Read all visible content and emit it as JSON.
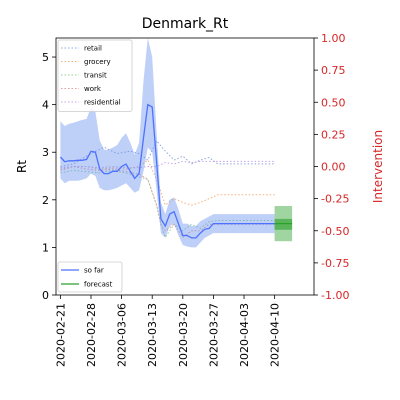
{
  "chart_data": {
    "type": "line",
    "title": "Denmark_Rt",
    "ylabel": "Rt",
    "ylabel_right": "Intervention",
    "ylim": [
      0,
      5.4
    ],
    "ylim_right": [
      -1.0,
      1.0
    ],
    "yticks": [
      0,
      1,
      2,
      3,
      4,
      5
    ],
    "yticks_right": [
      "-1.00",
      "-0.75",
      "-0.50",
      "-0.25",
      "0.00",
      "0.25",
      "0.50",
      "0.75",
      "1.00"
    ],
    "yticks_right_values": [
      -1.0,
      -0.75,
      -0.5,
      -0.25,
      0.0,
      0.25,
      0.5,
      0.75,
      1.0
    ],
    "x_dates": [
      "2020-02-21",
      "2020-02-28",
      "2020-03-06",
      "2020-03-13",
      "2020-03-20",
      "2020-03-27",
      "2020-04-03",
      "2020-04-10"
    ],
    "xlim": [
      "2020-02-20",
      "2020-04-19"
    ],
    "right_axis_color": "#d62728",
    "rt_so_far": {
      "name": "so far",
      "color": "#4c72ff",
      "dates": [
        "2020-02-21",
        "2020-02-22",
        "2020-02-23",
        "2020-02-24",
        "2020-02-25",
        "2020-02-26",
        "2020-02-27",
        "2020-02-28",
        "2020-02-29",
        "2020-03-01",
        "2020-03-02",
        "2020-03-03",
        "2020-03-04",
        "2020-03-05",
        "2020-03-06",
        "2020-03-07",
        "2020-03-08",
        "2020-03-09",
        "2020-03-10",
        "2020-03-11",
        "2020-03-12",
        "2020-03-13",
        "2020-03-14",
        "2020-03-15",
        "2020-03-16",
        "2020-03-17",
        "2020-03-18",
        "2020-03-19",
        "2020-03-20",
        "2020-03-21",
        "2020-03-22",
        "2020-03-23",
        "2020-03-24",
        "2020-03-25",
        "2020-03-26",
        "2020-03-27",
        "2020-04-03",
        "2020-04-10"
      ],
      "values": [
        2.9,
        2.8,
        2.82,
        2.82,
        2.83,
        2.83,
        2.85,
        3.02,
        3.0,
        2.65,
        2.55,
        2.55,
        2.6,
        2.6,
        2.7,
        2.75,
        2.6,
        2.45,
        2.55,
        3.3,
        4.0,
        3.95,
        2.8,
        1.6,
        1.45,
        1.7,
        1.75,
        1.5,
        1.25,
        1.25,
        1.2,
        1.2,
        1.3,
        1.38,
        1.4,
        1.5,
        1.5,
        1.5
      ],
      "lower": [
        2.45,
        2.35,
        2.4,
        2.4,
        2.4,
        2.42,
        2.45,
        2.55,
        2.5,
        2.25,
        2.2,
        2.2,
        2.22,
        2.25,
        2.3,
        2.35,
        2.25,
        2.15,
        2.2,
        2.6,
        3.1,
        3.0,
        2.2,
        1.3,
        1.2,
        1.45,
        1.5,
        1.25,
        1.05,
        1.02,
        1.0,
        1.0,
        1.1,
        1.2,
        1.25,
        1.3,
        1.3,
        1.3
      ],
      "upper": [
        3.65,
        3.55,
        3.6,
        3.62,
        3.65,
        3.68,
        3.7,
        3.95,
        3.85,
        3.25,
        3.05,
        3.05,
        3.1,
        3.15,
        3.3,
        3.4,
        3.2,
        2.95,
        3.2,
        4.5,
        5.5,
        5.0,
        3.4,
        1.95,
        1.7,
        2.0,
        2.05,
        1.8,
        1.5,
        1.5,
        1.45,
        1.45,
        1.55,
        1.6,
        1.65,
        1.7,
        1.7,
        1.7
      ]
    },
    "rt_forecast": {
      "name": "forecast",
      "color": "#2ca02c",
      "dates": [
        "2020-04-10",
        "2020-04-11",
        "2020-04-12",
        "2020-04-13",
        "2020-04-14"
      ],
      "values": [
        1.5,
        1.5,
        1.5,
        1.5,
        1.5
      ],
      "lower": [
        1.13,
        1.13,
        1.13,
        1.13,
        1.13
      ],
      "upper": [
        1.87,
        1.87,
        1.87,
        1.87,
        1.87
      ],
      "center_lower": [
        1.37,
        1.37,
        1.37,
        1.37,
        1.37
      ],
      "center_upper": [
        1.6,
        1.6,
        1.6,
        1.6,
        1.6
      ]
    },
    "interventions": [
      {
        "name": "retail",
        "color": "#8fa3e0",
        "dates": [
          "2020-02-21",
          "2020-02-24",
          "2020-02-27",
          "2020-02-28",
          "2020-03-02",
          "2020-03-05",
          "2020-03-08",
          "2020-03-10",
          "2020-03-12",
          "2020-03-14",
          "2020-03-16",
          "2020-03-18",
          "2020-03-20",
          "2020-03-22",
          "2020-03-24",
          "2020-03-26",
          "2020-03-28",
          "2020-04-03",
          "2020-04-10"
        ],
        "values": [
          0.0,
          0.02,
          0.08,
          0.1,
          0.15,
          0.1,
          0.12,
          0.1,
          0.05,
          0.2,
          0.12,
          0.05,
          0.08,
          0.02,
          0.05,
          0.07,
          0.02,
          0.02,
          0.02
        ]
      },
      {
        "name": "grocery",
        "color": "#f5b07a",
        "dates": [
          "2020-02-21",
          "2020-02-24",
          "2020-02-27",
          "2020-03-01",
          "2020-03-04",
          "2020-03-07",
          "2020-03-10",
          "2020-03-12",
          "2020-03-14",
          "2020-03-16",
          "2020-03-18",
          "2020-03-20",
          "2020-03-22",
          "2020-03-24",
          "2020-03-26",
          "2020-03-28",
          "2020-04-03",
          "2020-04-10"
        ],
        "values": [
          -0.02,
          0.0,
          0.0,
          -0.02,
          -0.01,
          -0.02,
          0.0,
          0.05,
          -0.1,
          -0.3,
          -0.25,
          -0.28,
          -0.3,
          -0.28,
          -0.25,
          -0.22,
          -0.22,
          -0.22
        ]
      },
      {
        "name": "transit",
        "color": "#8fd18f",
        "dates": [
          "2020-02-21",
          "2020-02-24",
          "2020-02-27",
          "2020-03-01",
          "2020-03-04",
          "2020-03-07",
          "2020-03-10",
          "2020-03-12",
          "2020-03-14",
          "2020-03-15",
          "2020-03-16",
          "2020-03-18",
          "2020-03-20",
          "2020-03-22",
          "2020-03-24",
          "2020-03-26",
          "2020-03-28",
          "2020-04-03",
          "2020-04-10"
        ],
        "values": [
          -0.05,
          -0.03,
          -0.04,
          -0.05,
          -0.03,
          -0.05,
          -0.08,
          -0.1,
          -0.3,
          -0.45,
          -0.55,
          -0.45,
          -0.5,
          -0.45,
          -0.48,
          -0.43,
          -0.42,
          -0.42,
          -0.42
        ]
      },
      {
        "name": "work",
        "color": "#e39a9a",
        "dates": [
          "2020-02-21",
          "2020-02-24",
          "2020-02-27",
          "2020-03-01",
          "2020-03-04",
          "2020-03-07",
          "2020-03-10",
          "2020-03-12",
          "2020-03-14",
          "2020-03-15",
          "2020-03-16",
          "2020-03-18",
          "2020-03-20",
          "2020-03-22",
          "2020-03-24",
          "2020-03-26",
          "2020-03-28",
          "2020-04-03",
          "2020-04-10"
        ],
        "values": [
          -0.03,
          0.0,
          -0.02,
          -0.03,
          -0.02,
          -0.04,
          -0.06,
          -0.1,
          -0.3,
          -0.45,
          -0.5,
          -0.45,
          -0.55,
          -0.5,
          -0.5,
          -0.45,
          -0.45,
          -0.45,
          -0.45
        ]
      },
      {
        "name": "residential",
        "color": "#c3a5e6",
        "dates": [
          "2020-02-21",
          "2020-02-24",
          "2020-02-27",
          "2020-03-01",
          "2020-03-04",
          "2020-03-07",
          "2020-03-10",
          "2020-03-12",
          "2020-03-14",
          "2020-03-16",
          "2020-03-18",
          "2020-03-20",
          "2020-03-22",
          "2020-03-24",
          "2020-03-26",
          "2020-03-28",
          "2020-04-03",
          "2020-04-10"
        ],
        "values": [
          -0.01,
          0.0,
          0.0,
          -0.01,
          0.0,
          -0.01,
          -0.01,
          0.0,
          0.0,
          0.03,
          0.02,
          0.04,
          0.03,
          0.04,
          0.04,
          0.04,
          0.04,
          0.04
        ]
      }
    ],
    "legend_top": {
      "placement": "upper-left",
      "entries": [
        "retail",
        "grocery",
        "transit",
        "work",
        "residential"
      ]
    },
    "legend_bottom": {
      "placement": "lower-left",
      "entries": [
        "so far",
        "forecast"
      ]
    }
  }
}
